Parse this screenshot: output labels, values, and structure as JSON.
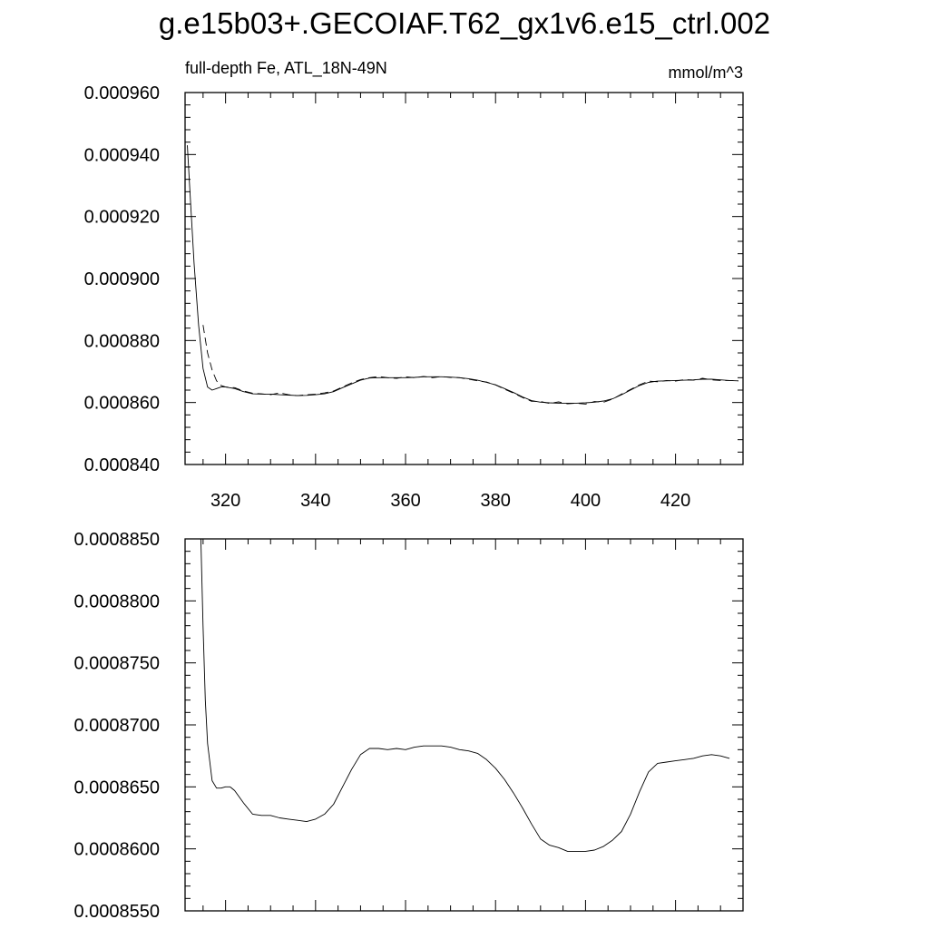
{
  "figure": {
    "title": "g.e15b03+.GECOIAF.T62_gx1v6.e15_ctrl.002"
  },
  "chart_data": [
    {
      "type": "line",
      "left_label": "full-depth Fe, ATL_18N-49N",
      "right_label": "mmol/m^3",
      "xlim": [
        311,
        435
      ],
      "ylim": [
        0.00084,
        0.00096
      ],
      "x_ticks": [
        320,
        340,
        360,
        380,
        400,
        420
      ],
      "x_tick_labels": [
        "320",
        "340",
        "360",
        "380",
        "400",
        "420"
      ],
      "y_ticks": [
        0.00084,
        0.00086,
        0.00088,
        0.0009,
        0.00092,
        0.00094,
        0.00096
      ],
      "y_tick_labels": [
        "0.000840",
        "0.000860",
        "0.000880",
        "0.000900",
        "0.000920",
        "0.000940",
        "0.000960"
      ],
      "series": [
        {
          "style": "solid",
          "x": [
            311.5,
            312,
            313,
            314,
            315,
            316,
            317,
            318,
            319,
            320,
            322,
            324,
            326,
            328,
            330,
            332,
            334,
            336,
            338,
            340,
            342,
            344,
            346,
            348,
            350,
            352,
            354,
            356,
            358,
            360,
            362,
            364,
            366,
            368,
            370,
            372,
            374,
            376,
            378,
            380,
            382,
            384,
            386,
            388,
            390,
            392,
            394,
            396,
            398,
            400,
            402,
            404,
            406,
            408,
            410,
            412,
            414,
            416,
            418,
            420,
            422,
            424,
            426,
            428,
            430,
            432,
            434
          ],
          "y": [
            0.000943,
            0.00093,
            0.000905,
            0.000885,
            0.000871,
            0.000865,
            0.000864,
            0.0008645,
            0.000865,
            0.000865,
            0.0008645,
            0.0008635,
            0.0008628,
            0.0008627,
            0.0008627,
            0.0008625,
            0.0008624,
            0.0008622,
            0.0008623,
            0.0008625,
            0.0008628,
            0.0008635,
            0.0008648,
            0.000866,
            0.0008672,
            0.0008679,
            0.000868,
            0.000868,
            0.000868,
            0.000868,
            0.0008681,
            0.0008683,
            0.0008683,
            0.0008683,
            0.0008682,
            0.000868,
            0.0008677,
            0.0008672,
            0.0008665,
            0.0008657,
            0.0008645,
            0.0008632,
            0.0008618,
            0.0008606,
            0.0008601,
            0.0008599,
            0.0008598,
            0.0008598,
            0.0008598,
            0.0008599,
            0.0008601,
            0.0008605,
            0.0008612,
            0.0008625,
            0.000864,
            0.0008655,
            0.0008665,
            0.0008669,
            0.000867,
            0.0008671,
            0.0008672,
            0.0008673,
            0.0008675,
            0.0008675,
            0.0008673,
            0.0008671,
            0.000867
          ]
        },
        {
          "style": "dashed",
          "x": [
            315,
            316,
            317,
            318,
            319,
            320,
            322,
            324,
            326,
            328,
            330,
            332,
            334,
            336,
            338,
            340,
            342,
            344,
            346,
            348,
            350,
            352,
            354,
            356,
            358,
            360,
            362,
            364,
            366,
            368,
            370,
            372,
            374,
            376,
            378,
            380,
            382,
            384,
            386,
            388,
            390,
            392,
            394,
            396,
            398,
            400,
            402,
            404,
            406,
            408,
            410,
            412,
            414,
            416,
            418,
            420,
            422,
            424,
            426,
            428,
            430,
            432,
            434
          ],
          "y": [
            0.000885,
            0.000876,
            0.0008705,
            0.000867,
            0.0008655,
            0.000865,
            0.0008648,
            0.0008637,
            0.000863,
            0.0008628,
            0.0008625,
            0.0008631,
            0.0008625,
            0.0008622,
            0.0008625,
            0.0008627,
            0.0008631,
            0.0008637,
            0.000865,
            0.0008663,
            0.0008674,
            0.000868,
            0.0008684,
            0.000868,
            0.0008678,
            0.0008683,
            0.000868,
            0.0008684,
            0.000868,
            0.0008684,
            0.0008681,
            0.000868,
            0.0008675,
            0.000867,
            0.0008666,
            0.0008657,
            0.0008643,
            0.000863,
            0.0008616,
            0.0008604,
            0.0008603,
            0.0008597,
            0.0008602,
            0.0008596,
            0.0008598,
            0.0008595,
            0.0008603,
            0.0008601,
            0.0008611,
            0.0008627,
            0.0008642,
            0.0008657,
            0.0008669,
            0.0008667,
            0.0008671,
            0.0008669,
            0.0008674,
            0.0008672,
            0.0008678,
            0.0008673,
            0.0008671,
            0.0008671,
            0.000867
          ]
        }
      ]
    },
    {
      "type": "line",
      "xlim": [
        311,
        435
      ],
      "ylim": [
        0.000855,
        0.000885
      ],
      "x_ticks": [
        320,
        340,
        360,
        380,
        400,
        420
      ],
      "y_ticks": [
        0.000855,
        0.00086,
        0.000865,
        0.00087,
        0.000875,
        0.00088,
        0.000885
      ],
      "y_tick_labels": [
        "0.0008550",
        "0.0008600",
        "0.0008650",
        "0.0008700",
        "0.0008750",
        "0.0008800",
        "0.0008850"
      ],
      "series": [
        {
          "style": "solid",
          "x": [
            314.5,
            315,
            315.5,
            316,
            317,
            318,
            319,
            320,
            321,
            322,
            324,
            326,
            328,
            330,
            332,
            334,
            336,
            338,
            340,
            342,
            344,
            346,
            348,
            350,
            352,
            354,
            356,
            358,
            360,
            362,
            364,
            366,
            368,
            370,
            372,
            374,
            376,
            378,
            380,
            382,
            384,
            386,
            388,
            390,
            392,
            394,
            396,
            398,
            400,
            402,
            404,
            406,
            408,
            410,
            412,
            414,
            416,
            418,
            420,
            422,
            424,
            426,
            428,
            430,
            432
          ],
          "y": [
            0.000885,
            0.000878,
            0.000872,
            0.0008685,
            0.0008655,
            0.0008649,
            0.0008649,
            0.000865,
            0.000865,
            0.0008647,
            0.0008637,
            0.0008628,
            0.0008627,
            0.0008627,
            0.0008625,
            0.0008624,
            0.0008623,
            0.0008622,
            0.0008624,
            0.0008628,
            0.0008636,
            0.000865,
            0.0008664,
            0.0008676,
            0.0008681,
            0.0008681,
            0.000868,
            0.0008681,
            0.000868,
            0.0008682,
            0.0008683,
            0.0008683,
            0.0008683,
            0.0008682,
            0.000868,
            0.0008679,
            0.0008677,
            0.0008672,
            0.0008665,
            0.0008656,
            0.0008645,
            0.0008633,
            0.000862,
            0.0008608,
            0.0008603,
            0.0008601,
            0.0008598,
            0.0008598,
            0.0008598,
            0.0008599,
            0.0008602,
            0.0008607,
            0.0008614,
            0.0008628,
            0.0008646,
            0.0008662,
            0.0008669,
            0.000867,
            0.0008671,
            0.0008672,
            0.0008673,
            0.0008675,
            0.0008676,
            0.0008675,
            0.0008673
          ]
        }
      ]
    }
  ]
}
